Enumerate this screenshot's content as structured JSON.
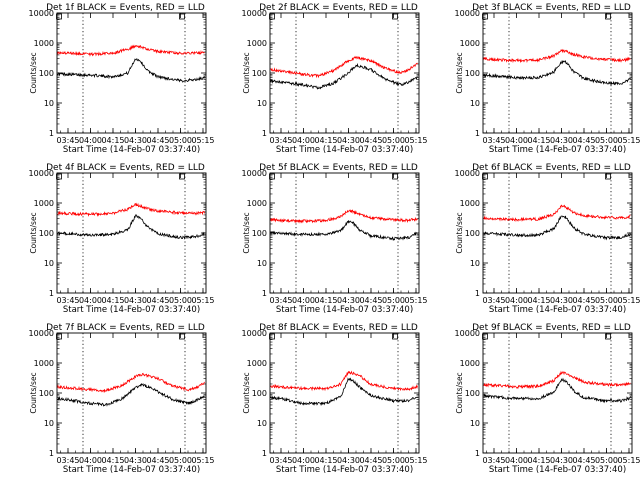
{
  "figure": {
    "ylabel": "Counts/sec",
    "xlabel": "Start Time (14-Feb-07 03:37:40)",
    "x_ticks": [
      "03:45",
      "04:00",
      "04:15",
      "04:30",
      "04:45",
      "05:00",
      "05:15"
    ],
    "y_ticks": [
      "1",
      "10",
      "100",
      "1000",
      "10000"
    ],
    "colors": {
      "events": "#000000",
      "lld": "#ff0000"
    }
  },
  "chart_data": [
    {
      "type": "line",
      "title": "Det 1f BLACK = Events, RED = LLD",
      "x_unit": "time",
      "xlim": [
        "03:37:40",
        "05:17:00"
      ],
      "ylim": [
        1,
        10000
      ],
      "y_scale": "log",
      "grid": false,
      "series": [
        {
          "name": "Events",
          "color": "#000000",
          "x": [
            "03:38",
            "03:45",
            "04:00",
            "04:15",
            "04:25",
            "04:30",
            "04:33",
            "04:38",
            "04:45",
            "05:00",
            "05:10",
            "05:16"
          ],
          "values": [
            95,
            90,
            85,
            75,
            100,
            300,
            260,
            120,
            75,
            55,
            60,
            70
          ]
        },
        {
          "name": "LLD",
          "color": "#ff0000",
          "x": [
            "03:38",
            "03:45",
            "04:00",
            "04:15",
            "04:25",
            "04:30",
            "04:33",
            "04:38",
            "04:45",
            "05:00",
            "05:10",
            "05:16"
          ],
          "values": [
            480,
            450,
            420,
            460,
            620,
            800,
            760,
            620,
            520,
            460,
            460,
            480
          ]
        }
      ]
    },
    {
      "type": "line",
      "title": "Det 2f BLACK = Events, RED = LLD",
      "x_unit": "time",
      "xlim": [
        "03:37:40",
        "05:17:00"
      ],
      "ylim": [
        1,
        10000
      ],
      "y_scale": "log",
      "grid": false,
      "series": [
        {
          "name": "Events",
          "color": "#000000",
          "x": [
            "03:38",
            "03:45",
            "04:00",
            "04:10",
            "04:20",
            "04:30",
            "04:35",
            "04:45",
            "04:55",
            "05:05",
            "05:10",
            "05:16"
          ],
          "values": [
            55,
            50,
            40,
            32,
            45,
            100,
            180,
            130,
            60,
            40,
            50,
            70
          ]
        },
        {
          "name": "LLD",
          "color": "#ff0000",
          "x": [
            "03:38",
            "03:45",
            "04:00",
            "04:10",
            "04:20",
            "04:30",
            "04:35",
            "04:45",
            "04:55",
            "05:05",
            "05:10",
            "05:16"
          ],
          "values": [
            130,
            120,
            90,
            80,
            120,
            260,
            330,
            260,
            140,
            100,
            130,
            200
          ]
        }
      ]
    },
    {
      "type": "line",
      "title": "Det 3f BLACK = Events, RED = LLD",
      "x_unit": "time",
      "xlim": [
        "03:37:40",
        "05:17:00"
      ],
      "ylim": [
        1,
        10000
      ],
      "y_scale": "log",
      "grid": false,
      "series": [
        {
          "name": "Events",
          "color": "#000000",
          "x": [
            "03:38",
            "03:45",
            "04:00",
            "04:15",
            "04:25",
            "04:30",
            "04:33",
            "04:38",
            "04:45",
            "05:00",
            "05:10",
            "05:16"
          ],
          "values": [
            85,
            80,
            70,
            70,
            110,
            240,
            230,
            110,
            65,
            45,
            45,
            65
          ]
        },
        {
          "name": "LLD",
          "color": "#ff0000",
          "x": [
            "03:38",
            "03:45",
            "04:00",
            "04:15",
            "04:25",
            "04:30",
            "04:33",
            "04:38",
            "04:45",
            "05:00",
            "05:10",
            "05:16"
          ],
          "values": [
            300,
            280,
            260,
            270,
            380,
            560,
            540,
            420,
            340,
            280,
            260,
            300
          ]
        }
      ]
    },
    {
      "type": "line",
      "title": "Det 4f BLACK = Events, RED = LLD",
      "x_unit": "time",
      "xlim": [
        "03:37:40",
        "05:17:00"
      ],
      "ylim": [
        1,
        10000
      ],
      "y_scale": "log",
      "grid": false,
      "series": [
        {
          "name": "Events",
          "color": "#000000",
          "x": [
            "03:38",
            "03:45",
            "04:00",
            "04:15",
            "04:25",
            "04:30",
            "04:33",
            "04:38",
            "04:45",
            "05:00",
            "05:10",
            "05:16"
          ],
          "values": [
            100,
            95,
            85,
            90,
            130,
            380,
            330,
            160,
            95,
            70,
            75,
            95
          ]
        },
        {
          "name": "LLD",
          "color": "#ff0000",
          "x": [
            "03:38",
            "03:45",
            "04:00",
            "04:15",
            "04:25",
            "04:30",
            "04:33",
            "04:38",
            "04:45",
            "05:00",
            "05:10",
            "05:16"
          ],
          "values": [
            460,
            440,
            420,
            460,
            620,
            880,
            800,
            640,
            540,
            460,
            450,
            480
          ]
        }
      ]
    },
    {
      "type": "line",
      "title": "Det 5f BLACK = Events, RED = LLD",
      "x_unit": "time",
      "xlim": [
        "03:37:40",
        "05:17:00"
      ],
      "ylim": [
        1,
        10000
      ],
      "y_scale": "log",
      "grid": false,
      "series": [
        {
          "name": "Events",
          "color": "#000000",
          "x": [
            "03:38",
            "03:45",
            "04:00",
            "04:15",
            "04:25",
            "04:30",
            "04:33",
            "04:38",
            "04:45",
            "05:00",
            "05:10",
            "05:16"
          ],
          "values": [
            100,
            95,
            90,
            90,
            120,
            240,
            220,
            120,
            80,
            65,
            70,
            100
          ]
        },
        {
          "name": "LLD",
          "color": "#ff0000",
          "x": [
            "03:38",
            "03:45",
            "04:00",
            "04:15",
            "04:25",
            "04:30",
            "04:33",
            "04:38",
            "04:45",
            "05:00",
            "05:10",
            "05:16"
          ],
          "values": [
            280,
            260,
            250,
            260,
            360,
            560,
            520,
            400,
            320,
            280,
            260,
            300
          ]
        }
      ]
    },
    {
      "type": "line",
      "title": "Det 6f BLACK = Events, RED = LLD",
      "x_unit": "time",
      "xlim": [
        "03:37:40",
        "05:17:00"
      ],
      "ylim": [
        1,
        10000
      ],
      "y_scale": "log",
      "grid": false,
      "series": [
        {
          "name": "Events",
          "color": "#000000",
          "x": [
            "03:38",
            "03:45",
            "04:00",
            "04:15",
            "04:25",
            "04:30",
            "04:33",
            "04:38",
            "04:45",
            "05:00",
            "05:10",
            "05:16"
          ],
          "values": [
            100,
            95,
            85,
            85,
            140,
            380,
            330,
            150,
            90,
            70,
            70,
            90
          ]
        },
        {
          "name": "LLD",
          "color": "#ff0000",
          "x": [
            "03:38",
            "03:45",
            "04:00",
            "04:15",
            "04:25",
            "04:30",
            "04:33",
            "04:38",
            "04:45",
            "05:00",
            "05:10",
            "05:16"
          ],
          "values": [
            320,
            300,
            280,
            290,
            420,
            800,
            720,
            480,
            380,
            330,
            320,
            360
          ]
        }
      ]
    },
    {
      "type": "line",
      "title": "Det 7f BLACK = Events, RED = LLD",
      "x_unit": "time",
      "xlim": [
        "03:37:40",
        "05:17:00"
      ],
      "ylim": [
        1,
        10000
      ],
      "y_scale": "log",
      "grid": false,
      "series": [
        {
          "name": "Events",
          "color": "#000000",
          "x": [
            "03:38",
            "03:45",
            "04:00",
            "04:10",
            "04:20",
            "04:30",
            "04:35",
            "04:45",
            "04:55",
            "05:05",
            "05:10",
            "05:16"
          ],
          "values": [
            65,
            60,
            45,
            40,
            60,
            150,
            190,
            110,
            60,
            45,
            55,
            80
          ]
        },
        {
          "name": "LLD",
          "color": "#ff0000",
          "x": [
            "03:38",
            "03:45",
            "04:00",
            "04:10",
            "04:20",
            "04:30",
            "04:35",
            "04:45",
            "04:55",
            "05:05",
            "05:10",
            "05:16"
          ],
          "values": [
            160,
            150,
            130,
            120,
            170,
            350,
            420,
            300,
            170,
            130,
            150,
            220
          ]
        }
      ]
    },
    {
      "type": "line",
      "title": "Det 8f BLACK = Events, RED = LLD",
      "x_unit": "time",
      "xlim": [
        "03:37:40",
        "05:17:00"
      ],
      "ylim": [
        1,
        10000
      ],
      "y_scale": "log",
      "grid": false,
      "series": [
        {
          "name": "Events",
          "color": "#000000",
          "x": [
            "03:38",
            "03:45",
            "04:00",
            "04:15",
            "04:25",
            "04:30",
            "04:33",
            "04:38",
            "04:45",
            "05:00",
            "05:10",
            "05:16"
          ],
          "values": [
            70,
            65,
            45,
            45,
            80,
            300,
            260,
            150,
            80,
            55,
            55,
            80
          ]
        },
        {
          "name": "LLD",
          "color": "#ff0000",
          "x": [
            "03:38",
            "03:45",
            "04:00",
            "04:15",
            "04:25",
            "04:30",
            "04:33",
            "04:38",
            "04:45",
            "05:00",
            "05:10",
            "05:16"
          ],
          "values": [
            170,
            160,
            140,
            140,
            200,
            500,
            450,
            360,
            190,
            140,
            130,
            170
          ]
        }
      ]
    },
    {
      "type": "line",
      "title": "Det 9f BLACK = Events, RED = LLD",
      "x_unit": "time",
      "xlim": [
        "03:37:40",
        "05:17:00"
      ],
      "ylim": [
        1,
        10000
      ],
      "y_scale": "log",
      "grid": false,
      "series": [
        {
          "name": "Events",
          "color": "#000000",
          "x": [
            "03:38",
            "03:45",
            "04:00",
            "04:15",
            "04:25",
            "04:30",
            "04:33",
            "04:38",
            "04:45",
            "05:00",
            "05:10",
            "05:16"
          ],
          "values": [
            80,
            75,
            65,
            65,
            110,
            280,
            250,
            120,
            70,
            55,
            55,
            70
          ]
        },
        {
          "name": "LLD",
          "color": "#ff0000",
          "x": [
            "03:38",
            "03:45",
            "04:00",
            "04:15",
            "04:25",
            "04:30",
            "04:33",
            "04:38",
            "04:45",
            "05:00",
            "05:10",
            "05:16"
          ],
          "values": [
            190,
            180,
            160,
            170,
            260,
            480,
            440,
            330,
            230,
            190,
            190,
            210
          ]
        }
      ]
    }
  ]
}
